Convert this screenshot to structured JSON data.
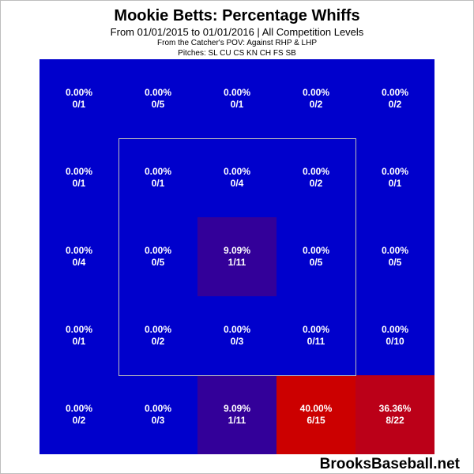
{
  "chart_data": {
    "type": "heatmap",
    "title": "Mookie Betts: Percentage Whiffs",
    "subtitle": "From 01/01/2015 to 01/01/2016 | All Competition Levels",
    "notes": [
      "From the Catcher's POV:  Against RHP & LHP",
      "Pitches:  SL  CU  CS  KN  CH  FS  SB"
    ],
    "rows": 5,
    "cols": 5,
    "cells": [
      [
        {
          "pct": "0.00%",
          "count": "0/1",
          "value": 0.0
        },
        {
          "pct": "0.00%",
          "count": "0/5",
          "value": 0.0
        },
        {
          "pct": "0.00%",
          "count": "0/1",
          "value": 0.0
        },
        {
          "pct": "0.00%",
          "count": "0/2",
          "value": 0.0
        },
        {
          "pct": "0.00%",
          "count": "0/2",
          "value": 0.0
        }
      ],
      [
        {
          "pct": "0.00%",
          "count": "0/1",
          "value": 0.0
        },
        {
          "pct": "0.00%",
          "count": "0/1",
          "value": 0.0
        },
        {
          "pct": "0.00%",
          "count": "0/4",
          "value": 0.0
        },
        {
          "pct": "0.00%",
          "count": "0/2",
          "value": 0.0
        },
        {
          "pct": "0.00%",
          "count": "0/1",
          "value": 0.0
        }
      ],
      [
        {
          "pct": "0.00%",
          "count": "0/4",
          "value": 0.0
        },
        {
          "pct": "0.00%",
          "count": "0/5",
          "value": 0.0
        },
        {
          "pct": "9.09%",
          "count": "1/11",
          "value": 9.09
        },
        {
          "pct": "0.00%",
          "count": "0/5",
          "value": 0.0
        },
        {
          "pct": "0.00%",
          "count": "0/5",
          "value": 0.0
        }
      ],
      [
        {
          "pct": "0.00%",
          "count": "0/1",
          "value": 0.0
        },
        {
          "pct": "0.00%",
          "count": "0/2",
          "value": 0.0
        },
        {
          "pct": "0.00%",
          "count": "0/3",
          "value": 0.0
        },
        {
          "pct": "0.00%",
          "count": "0/11",
          "value": 0.0
        },
        {
          "pct": "0.00%",
          "count": "0/10",
          "value": 0.0
        }
      ],
      [
        {
          "pct": "0.00%",
          "count": "0/2",
          "value": 0.0
        },
        {
          "pct": "0.00%",
          "count": "0/3",
          "value": 0.0
        },
        {
          "pct": "9.09%",
          "count": "1/11",
          "value": 9.09
        },
        {
          "pct": "40.00%",
          "count": "6/15",
          "value": 40.0
        },
        {
          "pct": "36.36%",
          "count": "8/22",
          "value": 36.36
        }
      ]
    ],
    "strike_zone": {
      "col_start": 1,
      "col_end": 4,
      "row_start": 1,
      "row_end": 4
    },
    "colors": {
      "zero": "#0000cc",
      "low": "#330099",
      "high": "#cc0000",
      "mid_high": "#bb0018",
      "zone_outline": "#bbbbbb"
    }
  },
  "watermark": "BrooksBaseball.net"
}
